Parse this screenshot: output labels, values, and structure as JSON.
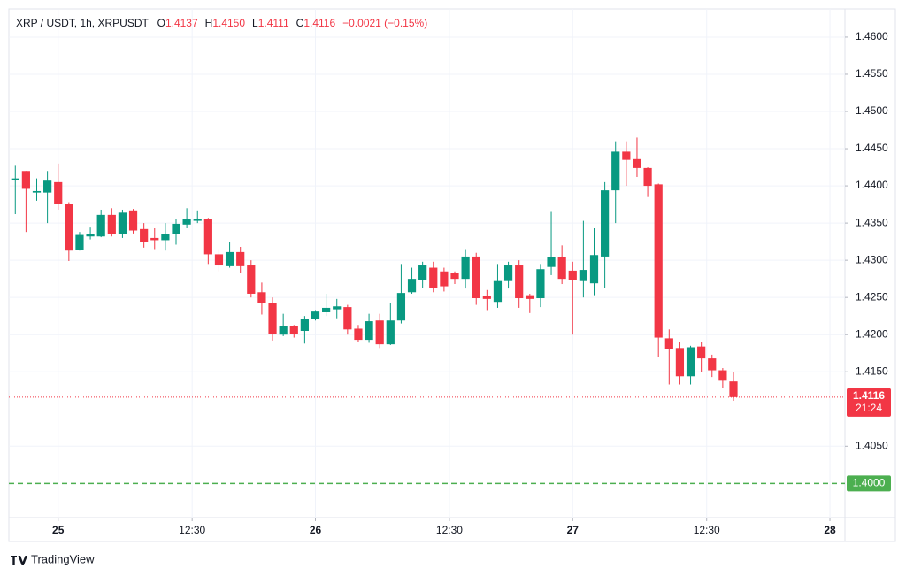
{
  "header": {
    "symbol": "XRP / USDT, 1h, XRPUSDT",
    "fields": [
      {
        "label": "O",
        "value": "1.4137"
      },
      {
        "label": "H",
        "value": "1.4150"
      },
      {
        "label": "L",
        "value": "1.4111"
      },
      {
        "label": "C",
        "value": "1.4116"
      }
    ],
    "change": "−0.0021 (−0.15%)"
  },
  "chart_data": {
    "type": "candlestick",
    "up_color": "#089981",
    "down_color": "#f23645",
    "open": [
      1.4408,
      1.442,
      1.4391,
      1.4391,
      1.4405,
      1.4376,
      1.4314,
      1.4332,
      1.4332,
      1.4361,
      1.4335,
      1.4367,
      1.4342,
      1.433,
      1.4327,
      1.4335,
      1.4348,
      1.4353,
      1.4356,
      1.4308,
      1.4292,
      1.4311,
      1.4293,
      1.4257,
      1.4243,
      1.42,
      1.4212,
      1.4205,
      1.4221,
      1.423,
      1.4234,
      1.4237,
      1.4208,
      1.4193,
      1.4219,
      1.4187,
      1.4219,
      1.4257,
      1.4274,
      1.429,
      1.4285,
      1.4283,
      1.4275,
      1.4305,
      1.4252,
      1.4244,
      1.4272,
      1.4293,
      1.4253,
      1.4249,
      1.4291,
      1.4304,
      1.4286,
      1.4272,
      1.4269,
      1.4305,
      1.4394,
      1.4446,
      1.4436,
      1.4424,
      1.4402,
      1.4195,
      1.4182,
      1.4144,
      1.4184,
      1.4168,
      1.4152,
      1.4137
    ],
    "high": [
      1.4427,
      1.442,
      1.441,
      1.442,
      1.443,
      1.4378,
      1.4338,
      1.4344,
      1.4368,
      1.437,
      1.4368,
      1.4369,
      1.435,
      1.4343,
      1.435,
      1.4356,
      1.437,
      1.4367,
      1.4357,
      1.4315,
      1.4325,
      1.4318,
      1.43,
      1.427,
      1.425,
      1.4228,
      1.4213,
      1.4225,
      1.4233,
      1.4255,
      1.4248,
      1.424,
      1.4213,
      1.4228,
      1.4228,
      1.4243,
      1.4295,
      1.429,
      1.4298,
      1.4298,
      1.429,
      1.4285,
      1.4315,
      1.431,
      1.426,
      1.4295,
      1.4298,
      1.43,
      1.4255,
      1.4295,
      1.4365,
      1.432,
      1.4298,
      1.4353,
      1.4343,
      1.4405,
      1.446,
      1.446,
      1.4465,
      1.4425,
      1.4403,
      1.4207,
      1.419,
      1.4185,
      1.419,
      1.4173,
      1.4155,
      1.415
    ],
    "low": [
      1.4362,
      1.4338,
      1.438,
      1.435,
      1.4368,
      1.4299,
      1.4313,
      1.4328,
      1.4331,
      1.4332,
      1.433,
      1.4336,
      1.4317,
      1.4315,
      1.4313,
      1.4321,
      1.4343,
      1.435,
      1.4295,
      1.4285,
      1.429,
      1.4283,
      1.425,
      1.4227,
      1.4192,
      1.4198,
      1.4196,
      1.4188,
      1.4219,
      1.4225,
      1.4222,
      1.42,
      1.419,
      1.4189,
      1.4182,
      1.4186,
      1.4215,
      1.4255,
      1.4263,
      1.4257,
      1.4258,
      1.4268,
      1.4262,
      1.424,
      1.4233,
      1.4236,
      1.4262,
      1.4236,
      1.4229,
      1.4237,
      1.428,
      1.4268,
      1.42,
      1.425,
      1.4253,
      1.4263,
      1.435,
      1.44,
      1.4412,
      1.4385,
      1.417,
      1.4133,
      1.4133,
      1.4133,
      1.415,
      1.4143,
      1.4128,
      1.4111
    ],
    "close": [
      1.441,
      1.4396,
      1.4393,
      1.4407,
      1.4376,
      1.4313,
      1.4334,
      1.4335,
      1.4361,
      1.4335,
      1.4364,
      1.434,
      1.4325,
      1.4327,
      1.4335,
      1.4349,
      1.4355,
      1.4356,
      1.4308,
      1.4293,
      1.4311,
      1.4292,
      1.4255,
      1.4243,
      1.4201,
      1.4212,
      1.4201,
      1.4221,
      1.4231,
      1.4236,
      1.4238,
      1.4207,
      1.4193,
      1.4218,
      1.4187,
      1.4219,
      1.4256,
      1.4275,
      1.4293,
      1.4263,
      1.4265,
      1.4275,
      1.4305,
      1.4249,
      1.4248,
      1.4272,
      1.4293,
      1.4249,
      1.4248,
      1.4288,
      1.4304,
      1.4275,
      1.4274,
      1.4287,
      1.4307,
      1.4394,
      1.4446,
      1.4435,
      1.4424,
      1.44,
      1.4196,
      1.4181,
      1.4144,
      1.4183,
      1.4168,
      1.4152,
      1.4138,
      1.4116
    ],
    "xlim": [
      -0.6,
      77.4
    ],
    "xticks": [
      {
        "value": 4,
        "label": "25"
      },
      {
        "value": 16.5,
        "label": "12:30"
      },
      {
        "value": 28,
        "label": "26"
      },
      {
        "value": 40.5,
        "label": "12:30"
      },
      {
        "value": 52,
        "label": "27"
      },
      {
        "value": 64.5,
        "label": "12:30"
      },
      {
        "value": 76,
        "label": "28"
      }
    ],
    "ylim": [
      1.3954,
      1.4638
    ],
    "yticks": [
      {
        "value": 1.405,
        "label": "1.4050"
      },
      {
        "value": 1.415,
        "label": "1.4150"
      },
      {
        "value": 1.42,
        "label": "1.4200"
      },
      {
        "value": 1.425,
        "label": "1.4250"
      },
      {
        "value": 1.43,
        "label": "1.4300"
      },
      {
        "value": 1.435,
        "label": "1.4350"
      },
      {
        "value": 1.44,
        "label": "1.4400"
      },
      {
        "value": 1.445,
        "label": "1.4450"
      },
      {
        "value": 1.45,
        "label": "1.4500"
      },
      {
        "value": 1.455,
        "label": "1.4550"
      },
      {
        "value": 1.46,
        "label": "1.4600"
      }
    ],
    "grid": true,
    "price_line": {
      "value": 1.4116,
      "label": "1.4116",
      "countdown": "21:24",
      "color": "#f23645"
    },
    "level_line": {
      "value": 1.4,
      "label": "1.4000",
      "color": "#4caf50"
    }
  },
  "footer": {
    "brand": "TradingView"
  }
}
